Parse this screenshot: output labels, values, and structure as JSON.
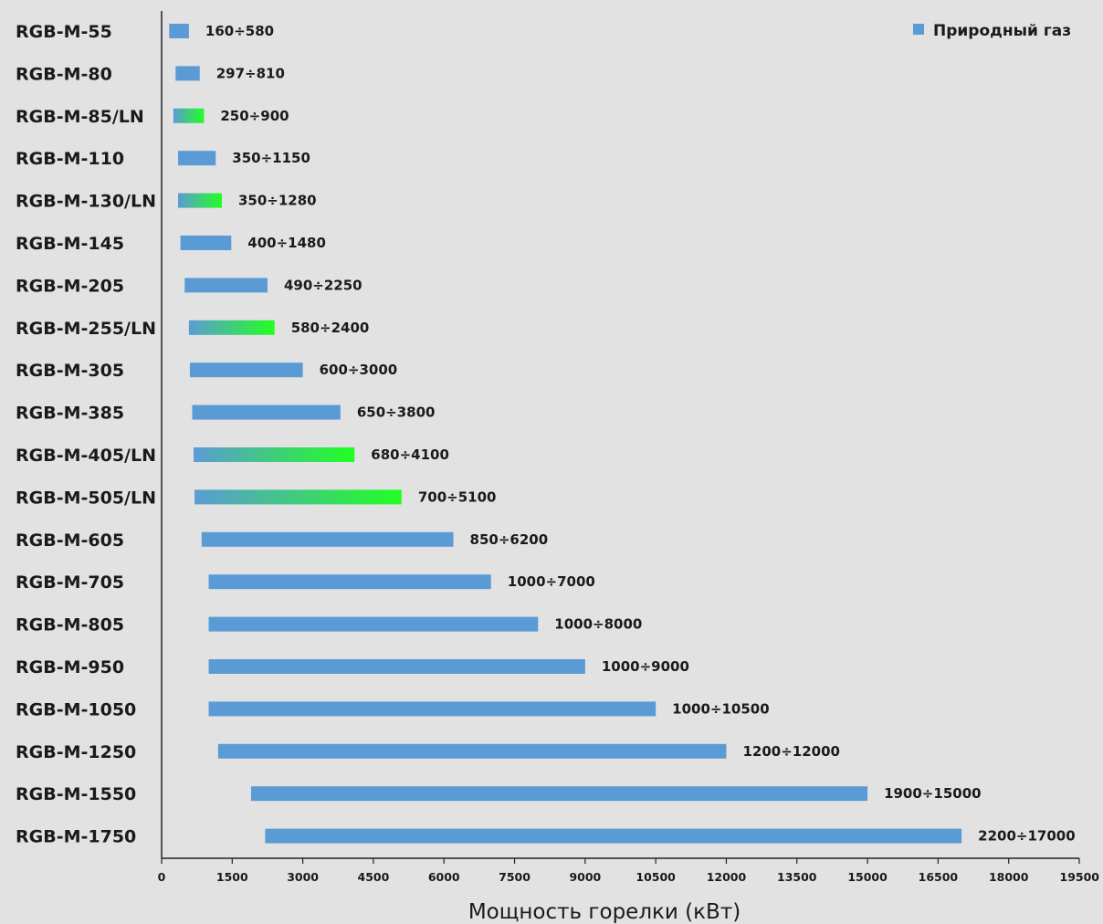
{
  "chart_data": {
    "type": "bar",
    "orientation": "horizontal",
    "subtype": "floating-range",
    "xlabel": "Мощность горелки  (кВт)",
    "xlim": [
      0,
      19500
    ],
    "xticks": [
      0,
      1500,
      3000,
      4500,
      6000,
      7500,
      9000,
      10500,
      12000,
      13500,
      15000,
      16500,
      18000,
      19500
    ],
    "grid": false,
    "legend": {
      "position": "top-right",
      "entries": [
        {
          "label": "Природный газ",
          "color": "#5b9bd5"
        }
      ]
    },
    "colors": {
      "bar": "#5b9bd5",
      "ln_gradient_end": "#22ff22"
    },
    "categories": [
      "RGB-M-55",
      "RGB-M-80",
      "RGB-M-85/LN",
      "RGB-M-110",
      "RGB-M-130/LN",
      "RGB-M-145",
      "RGB-M-205",
      "RGB-M-255/LN",
      "RGB-M-305",
      "RGB-M-385",
      "RGB-M-405/LN",
      "RGB-M-505/LN",
      "RGB-M-605",
      "RGB-M-705",
      "RGB-M-805",
      "RGB-M-950",
      "RGB-M-1050",
      "RGB-M-1250",
      "RGB-M-1550",
      "RGB-M-1750"
    ],
    "series": [
      {
        "name": "Природный газ",
        "ranges": [
          [
            160,
            580
          ],
          [
            297,
            810
          ],
          [
            250,
            900
          ],
          [
            350,
            1150
          ],
          [
            350,
            1280
          ],
          [
            400,
            1480
          ],
          [
            490,
            2250
          ],
          [
            580,
            2400
          ],
          [
            600,
            3000
          ],
          [
            650,
            3800
          ],
          [
            680,
            4100
          ],
          [
            700,
            5100
          ],
          [
            850,
            6200
          ],
          [
            1000,
            7000
          ],
          [
            1000,
            8000
          ],
          [
            1000,
            9000
          ],
          [
            1000,
            10500
          ],
          [
            1200,
            12000
          ],
          [
            1900,
            15000
          ],
          [
            2200,
            17000
          ]
        ],
        "labels": [
          "160÷580",
          "297÷810",
          "250÷900",
          "350÷1150",
          "350÷1280",
          "400÷1480",
          "490÷2250",
          "580÷2400",
          "600÷3000",
          "650÷3800",
          "680÷4100",
          "700÷5100",
          "850÷6200",
          "1000÷7000",
          "1000÷8000",
          "1000÷9000",
          "1000÷10500",
          "1200÷12000",
          "1900÷15000",
          "2200÷17000"
        ],
        "gradient": [
          false,
          false,
          true,
          false,
          true,
          false,
          false,
          true,
          false,
          false,
          true,
          true,
          false,
          false,
          false,
          false,
          false,
          false,
          false,
          false
        ]
      }
    ]
  }
}
